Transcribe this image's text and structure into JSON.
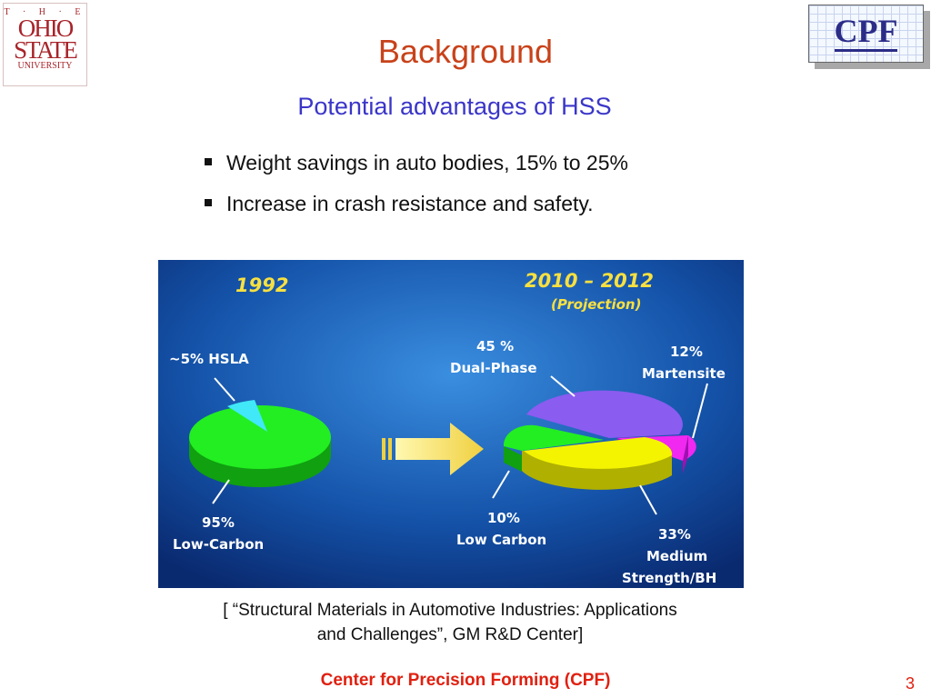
{
  "logos": {
    "osu": {
      "the": "T · H · E",
      "line1": "OHIO",
      "line2": "STATE",
      "line3": "UNIVERSITY"
    },
    "cpf": "CPF"
  },
  "title": "Background",
  "subtitle": "Potential advantages of HSS",
  "bullets": [
    "Weight savings in auto bodies, 15% to 25%",
    "Increase in crash resistance and safety."
  ],
  "figure": {
    "left_year": "1992",
    "right_year": "2010 – 2012",
    "right_note": "(Projection)",
    "left_pie": [
      {
        "pct": "~5% HSLA",
        "value": 5,
        "color": "#30e0f0"
      },
      {
        "pct": "95%",
        "name": "Low-Carbon",
        "value": 95,
        "color": "#20e020"
      }
    ],
    "right_pie": [
      {
        "pct": "45 %",
        "name": "Dual-Phase",
        "value": 45,
        "color": "#8a5cf0"
      },
      {
        "pct": "12%",
        "name": "Martensite",
        "value": 12,
        "color": "#e020e8"
      },
      {
        "pct": "33%",
        "name": "Medium",
        "name2": "Strength/BH",
        "value": 33,
        "color": "#f0f000"
      },
      {
        "pct": "10%",
        "name": "Low Carbon",
        "value": 10,
        "color": "#20e020"
      }
    ]
  },
  "caption": {
    "line1": "[ “Structural Materials in Automotive Industries: Applications",
    "line2": "and Challenges”, GM R&D Center]"
  },
  "footer": "Center for Precision Forming (CPF)",
  "page_number": "3"
}
